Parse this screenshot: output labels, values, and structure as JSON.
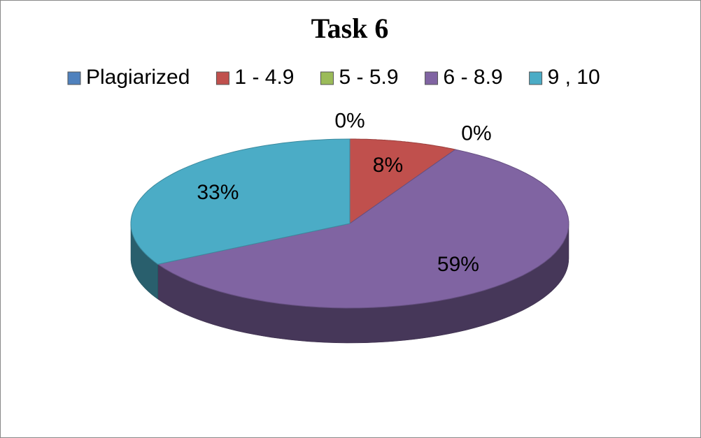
{
  "chart_data": {
    "type": "pie3d",
    "title": "Task 6",
    "categories": [
      "Plagiarized",
      "1 - 4.9",
      "5 - 5.9",
      "6 - 8.9",
      "9 , 10"
    ],
    "values": [
      0,
      8,
      0,
      59,
      33
    ],
    "value_labels": [
      "0%",
      "8%",
      "0%",
      "59%",
      "33%"
    ],
    "colors": [
      "#4f81bd",
      "#c0504d",
      "#9bbb59",
      "#8064a2",
      "#4bacc6"
    ],
    "legend": "top"
  }
}
